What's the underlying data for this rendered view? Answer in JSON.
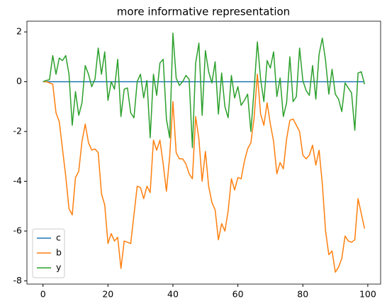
{
  "chart_data": {
    "type": "line",
    "title": "more informative representation",
    "x": [
      0,
      1,
      2,
      3,
      4,
      5,
      6,
      7,
      8,
      9,
      10,
      11,
      12,
      13,
      14,
      15,
      16,
      17,
      18,
      19,
      20,
      21,
      22,
      23,
      24,
      25,
      26,
      27,
      28,
      29,
      30,
      31,
      32,
      33,
      34,
      35,
      36,
      37,
      38,
      39,
      40,
      41,
      42,
      43,
      44,
      45,
      46,
      47,
      48,
      49,
      50,
      51,
      52,
      53,
      54,
      55,
      56,
      57,
      58,
      59,
      60,
      61,
      62,
      63,
      64,
      65,
      66,
      67,
      68,
      69,
      70,
      71,
      72,
      73,
      74,
      75,
      76,
      77,
      78,
      79,
      80,
      81,
      82,
      83,
      84,
      85,
      86,
      87,
      88,
      89,
      90,
      91,
      92,
      93,
      94,
      95,
      96,
      97,
      98,
      99
    ],
    "series": [
      {
        "name": "c",
        "color": "#1f77b4",
        "values": [
          0,
          0,
          0,
          0,
          0,
          0,
          0,
          0,
          0,
          0,
          0,
          0,
          0,
          0,
          0,
          0,
          0,
          0,
          0,
          0,
          0,
          0,
          0,
          0,
          0,
          0,
          0,
          0,
          0,
          0,
          0,
          0,
          0,
          0,
          0,
          0,
          0,
          0,
          0,
          0,
          0,
          0,
          0,
          0,
          0,
          0,
          0,
          0,
          0,
          0,
          0,
          0,
          0,
          0,
          0,
          0,
          0,
          0,
          0,
          0,
          0,
          0,
          0,
          0,
          0,
          0,
          0,
          0,
          0,
          0,
          0,
          0,
          0,
          0,
          0,
          0,
          0,
          0,
          0,
          0,
          0,
          0,
          0,
          0,
          0,
          0,
          0,
          0,
          0,
          0,
          0,
          0,
          0,
          0,
          0,
          0,
          0,
          0,
          0,
          0
        ]
      },
      {
        "name": "b",
        "color": "#ff7f0e",
        "values": [
          0,
          0.0,
          -0.05,
          -0.1,
          -1.25,
          -1.6,
          -2.7,
          -3.8,
          -5.1,
          -5.35,
          -3.85,
          -3.6,
          -2.4,
          -1.7,
          -2.45,
          -2.75,
          -2.7,
          -2.85,
          -4.5,
          -4.95,
          -6.5,
          -6.1,
          -6.4,
          -6.25,
          -7.5,
          -6.4,
          -6.45,
          -6.5,
          -5.35,
          -4.2,
          -4.25,
          -4.7,
          -4.2,
          -4.45,
          -2.35,
          -2.75,
          -2.35,
          -3.3,
          -4.4,
          -3.0,
          -0.8,
          -2.85,
          -3.1,
          -3.1,
          -3.3,
          -3.7,
          -3.9,
          -1.4,
          -2.3,
          -4.0,
          -2.8,
          -4.2,
          -4.85,
          -5.15,
          -6.35,
          -5.7,
          -6.0,
          -5.2,
          -3.9,
          -4.35,
          -3.85,
          -3.9,
          -3.2,
          -2.7,
          -2.45,
          -1.45,
          0.3,
          -1.3,
          -1.75,
          -0.85,
          -1.7,
          -2.4,
          -3.7,
          -3.25,
          -3.5,
          -2.3,
          -1.55,
          -1.5,
          -1.75,
          -2.0,
          -2.95,
          -3.1,
          -2.95,
          -2.55,
          -3.35,
          -2.75,
          -4.1,
          -6.0,
          -6.95,
          -6.8,
          -7.65,
          -7.45,
          -7.1,
          -6.2,
          -6.4,
          -6.45,
          -6.35,
          -4.7,
          -5.3,
          -5.9
        ]
      },
      {
        "name": "y",
        "color": "#2ca02c",
        "values": [
          0,
          0.05,
          0.08,
          1.05,
          0.3,
          0.95,
          0.85,
          1.05,
          0.3,
          -1.75,
          -0.4,
          -1.35,
          -0.85,
          0.65,
          0.3,
          -0.2,
          0.1,
          1.35,
          0.3,
          1.2,
          -0.75,
          0.0,
          -0.3,
          0.9,
          -1.4,
          -0.3,
          -0.25,
          -1.25,
          -1.45,
          0.0,
          0.3,
          -0.65,
          0.05,
          -2.25,
          0.3,
          -0.55,
          0.75,
          0.9,
          -1.5,
          -2.25,
          1.95,
          0.15,
          -0.15,
          0.0,
          0.25,
          0.1,
          -2.65,
          0.75,
          1.55,
          -1.35,
          1.25,
          0.4,
          -0.05,
          0.8,
          -1.3,
          0.35,
          -1.0,
          -1.45,
          0.25,
          -0.65,
          -0.2,
          -0.95,
          -0.75,
          -0.5,
          -2.0,
          -0.3,
          1.6,
          0.1,
          -0.8,
          0.85,
          0.55,
          1.2,
          -0.6,
          0.15,
          -1.4,
          -0.85,
          1.0,
          -0.8,
          -0.6,
          1.35,
          0.05,
          -0.35,
          -0.55,
          0.65,
          -0.7,
          1.1,
          1.75,
          0.85,
          -0.5,
          0.5,
          -0.5,
          -0.7,
          -1.2,
          -0.05,
          -0.25,
          -0.45,
          -1.95,
          0.35,
          0.4,
          -0.1
        ]
      }
    ],
    "xlim": [
      -4.95,
      103.95
    ],
    "ylim": [
      -8.13,
      2.43
    ],
    "xticks": [
      0,
      20,
      40,
      60,
      80,
      100
    ],
    "yticks": [
      -8,
      -6,
      -4,
      -2,
      0,
      2
    ],
    "legend": "lower left"
  }
}
